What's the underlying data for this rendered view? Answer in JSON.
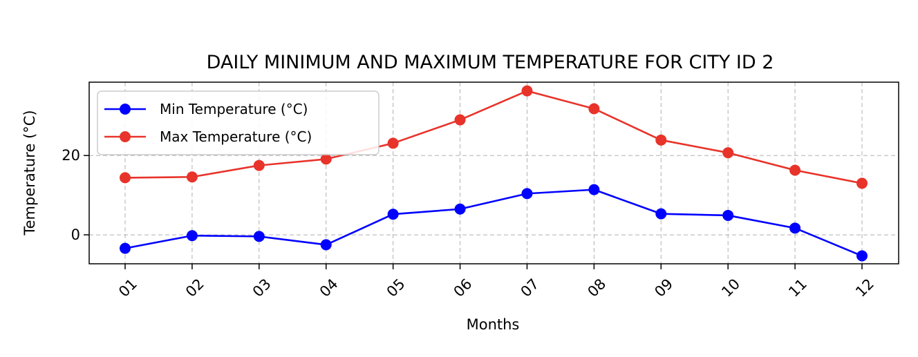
{
  "chart_data": {
    "type": "line",
    "title": "DAILY MINIMUM AND MAXIMUM TEMPERATURE FOR CITY ID 2",
    "xlabel": "Months",
    "ylabel": "Temperature (°C)",
    "categories": [
      "01",
      "02",
      "03",
      "04",
      "05",
      "06",
      "07",
      "08",
      "09",
      "10",
      "11",
      "12"
    ],
    "ylim": [
      -7.3,
      38.5
    ],
    "yticks": [
      0,
      20
    ],
    "grid": true,
    "legend_position": "top-left",
    "series": [
      {
        "name": "Min Temperature (°C)",
        "color": "#0000ff",
        "values": [
          -3.4,
          -0.2,
          -0.4,
          -2.5,
          5.2,
          6.5,
          10.4,
          11.4,
          5.3,
          4.9,
          1.7,
          -5.3
        ]
      },
      {
        "name": "Max Temperature (°C)",
        "color": "#e8332a",
        "values": [
          14.4,
          14.6,
          17.5,
          19.1,
          23.1,
          29.0,
          36.3,
          31.8,
          23.9,
          20.7,
          16.3,
          13.0
        ]
      }
    ]
  }
}
